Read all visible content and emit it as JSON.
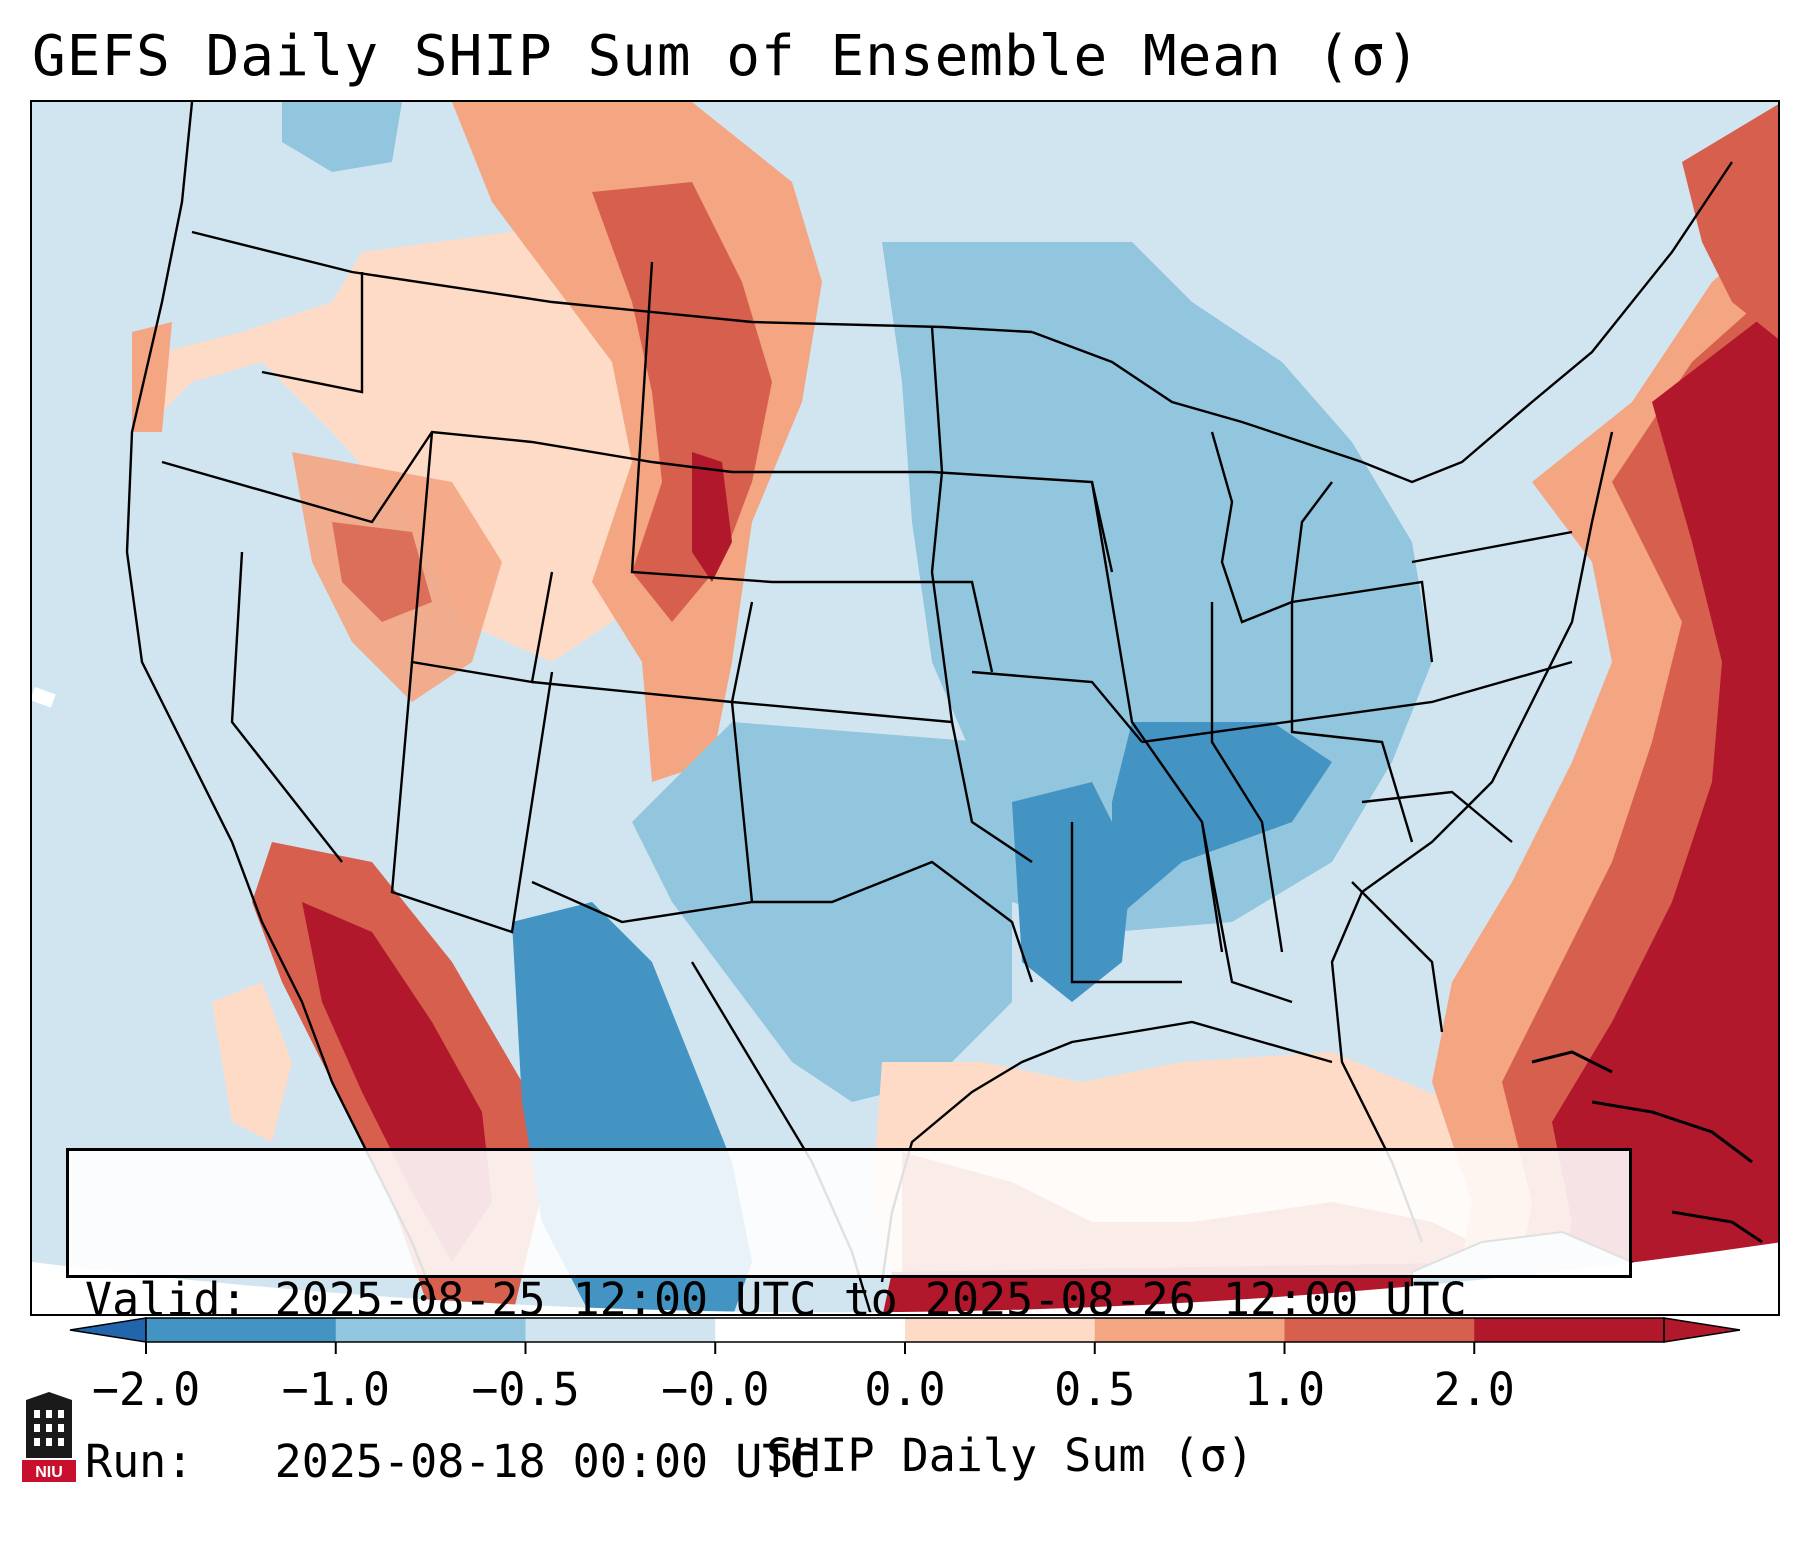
{
  "title": "GEFS Daily SHIP Sum of Ensemble Mean (σ)",
  "info": {
    "valid_line": "Valid: 2025-08-25 12:00 UTC to 2025-08-26 12:00 UTC",
    "run_line": "Run:   2025-08-18 00:00 UTC"
  },
  "colorbar": {
    "label": "SHIP Daily Sum (σ)",
    "ticks": [
      "−2.0",
      "−1.0",
      "−0.5",
      "−0.0",
      "0.0",
      "0.5",
      "1.0",
      "2.0"
    ],
    "bins": [
      {
        "range": "-2.0 to -1.0",
        "color": "#4393c3"
      },
      {
        "range": "-1.0 to -0.5",
        "color": "#92c5de"
      },
      {
        "range": "-0.5 to 0.0",
        "color": "#d1e5f0"
      },
      {
        "range": "0.0",
        "color": "#ffffff"
      },
      {
        "range": "0.0 to 0.5",
        "color": "#fddbc7"
      },
      {
        "range": "0.5 to 1.0",
        "color": "#f4a582"
      },
      {
        "range": "1.0 to 2.0",
        "color": "#d6604d"
      },
      {
        "range": ">2.0",
        "color": "#b2182b"
      }
    ],
    "under_color": "#2166ac",
    "over_color": "#b2182b"
  },
  "logo": {
    "text": "NIU",
    "color": "#c8102e"
  },
  "regions": [
    {
      "name": "Northern Rockies / Montana",
      "category": "0.0 to 0.5"
    },
    {
      "name": "Eastern Montana / Wyoming corridor",
      "category": "1.0 to 2.0"
    },
    {
      "name": "Arizona / Southern California / Baja",
      "category": ">2.0"
    },
    {
      "name": "Midwest / Ohio Valley",
      "category": "-1.0 to -0.5"
    },
    {
      "name": "Tennessee / Arkansas / Mississippi",
      "category": "-2.0 to -1.0"
    },
    {
      "name": "New Mexico / West Texas",
      "category": "-2.0 to -1.0"
    },
    {
      "name": "Gulf of Mexico",
      "category": "0.0 to 0.5"
    },
    {
      "name": "Western Atlantic",
      "category": ">2.0"
    }
  ]
}
